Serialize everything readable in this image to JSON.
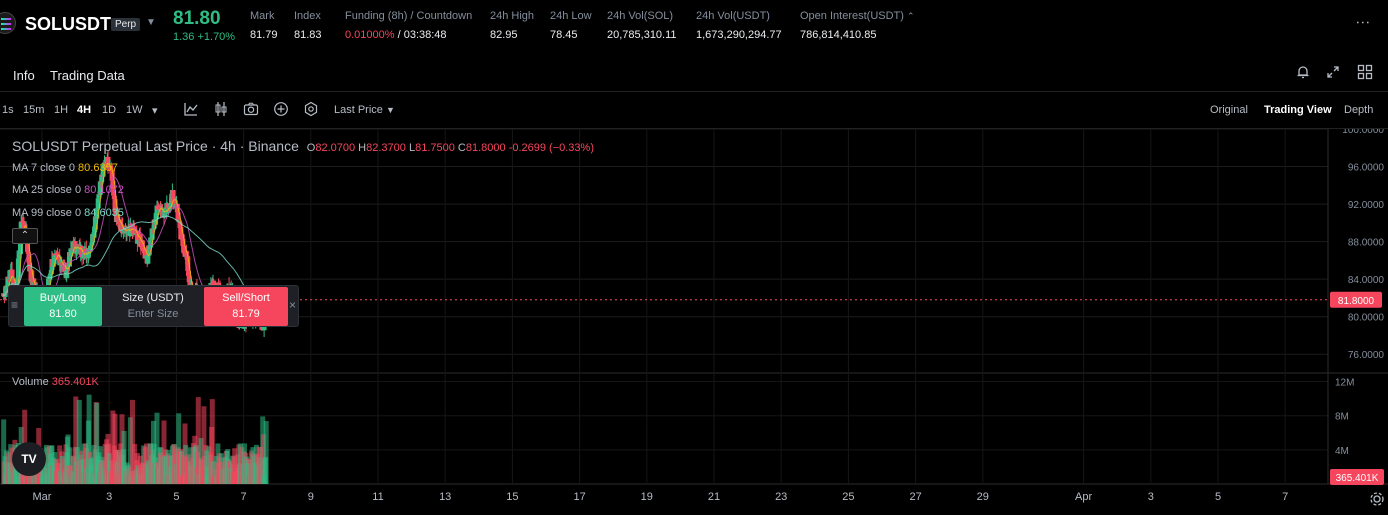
{
  "header": {
    "symbol": "SOLUSDT",
    "contract": "Perp",
    "last_price": "81.80",
    "change": "1.36 +1.70%",
    "stats": [
      {
        "label": "Mark",
        "value": "81.79"
      },
      {
        "label": "Index",
        "value": "81.83"
      },
      {
        "label": "Funding (8h) / Countdown",
        "value_red": "0.01000%",
        "value": " / 03:38:48"
      },
      {
        "label": "24h High",
        "value": "82.95"
      },
      {
        "label": "24h Low",
        "value": "78.45"
      },
      {
        "label": "24h Vol(SOL)",
        "value": "20,785,310.11"
      },
      {
        "label": "24h Vol(USDT)",
        "value": "1,673,290,294.77"
      },
      {
        "label": "Open Interest(USDT)",
        "value": "786,814,410.85"
      }
    ],
    "more": "⋮"
  },
  "tabs": [
    "Info",
    "Trading Data"
  ],
  "toolbar": {
    "intervals": [
      "1s",
      "15m",
      "1H",
      "4H",
      "1D",
      "1W"
    ],
    "active_interval": "4H",
    "price_source": "Last Price",
    "views": [
      "Original",
      "Trading View",
      "Depth"
    ],
    "active_view": "Trading View"
  },
  "legend": {
    "title": "SOLUSDT Perpetual Last Price · 4h · Binance",
    "ohlc": [
      {
        "k": "O",
        "v": "82.0700"
      },
      {
        "k": "H",
        "v": "82.3700"
      },
      {
        "k": "L",
        "v": "81.7500"
      },
      {
        "k": "C",
        "v": "81.8000"
      }
    ],
    "change": "-0.2699 (−0.33%)",
    "ma7_label": "MA 7 close 0",
    "ma7_value": "80.6357",
    "ma25_label": "MA 25 close 0",
    "ma25_value": "80.1072",
    "ma99_label": "MA 99 close 0",
    "ma99_value": "84.6035",
    "volume_label": "Volume",
    "volume_value": "365.401K"
  },
  "trade_panel": {
    "buy_label": "Buy/Long",
    "buy_price": "81.80",
    "size_label": "Size (USDT)",
    "size_placeholder": "Enter Size",
    "sell_label": "Sell/Short",
    "sell_price": "81.79"
  },
  "colors": {
    "up": "#2ebd85",
    "down": "#f6465d",
    "ma7": "#f0b90b",
    "ma25": "#c850c0",
    "ma99": "#76d7c4"
  },
  "chart_data": {
    "type": "candlestick",
    "title": "SOLUSDT Perpetual Last Price · 4h · Binance",
    "y_ticks": [
      "100.0000",
      "96.0000",
      "92.0000",
      "88.0000",
      "84.0000",
      "80.0000",
      "76.0000"
    ],
    "ylim": [
      74,
      100
    ],
    "volume_ticks": [
      "12M",
      "8M",
      "4M"
    ],
    "volume_ylim": [
      0,
      13
    ],
    "current_price": "81.8000",
    "current_volume": "365.401K",
    "x_labels": [
      "Mar",
      "3",
      "5",
      "7",
      "9",
      "11",
      "13",
      "15",
      "17",
      "19",
      "21",
      "23",
      "25",
      "27",
      "29",
      "Apr",
      "3",
      "5",
      "7"
    ],
    "x_label_days": [
      1,
      3,
      5,
      7,
      9,
      11,
      13,
      15,
      17,
      19,
      21,
      23,
      25,
      27,
      29,
      32,
      34,
      36,
      38
    ],
    "anchors": [
      [
        0,
        82.2
      ],
      [
        5,
        83.3
      ],
      [
        12,
        84.8
      ],
      [
        18,
        82.4
      ],
      [
        24,
        87.2
      ],
      [
        27,
        90.6
      ],
      [
        33,
        88.6
      ],
      [
        40,
        84
      ],
      [
        48,
        82.6
      ],
      [
        55,
        80.3
      ],
      [
        62,
        82.3
      ],
      [
        70,
        85.8
      ],
      [
        80,
        86.3
      ],
      [
        90,
        84.8
      ],
      [
        100,
        87.6
      ],
      [
        110,
        87.1
      ],
      [
        120,
        86.7
      ],
      [
        128,
        88.4
      ],
      [
        138,
        93.7
      ],
      [
        146,
        96.6
      ],
      [
        154,
        96.3
      ],
      [
        160,
        91.1
      ],
      [
        168,
        89.2
      ],
      [
        176,
        88.8
      ],
      [
        184,
        89.4
      ],
      [
        192,
        88.4
      ],
      [
        198,
        87.8
      ],
      [
        206,
        86.3
      ],
      [
        214,
        89.2
      ],
      [
        222,
        92
      ],
      [
        230,
        91.2
      ],
      [
        236,
        91.7
      ],
      [
        242,
        93
      ],
      [
        248,
        91.7
      ],
      [
        254,
        88.4
      ],
      [
        262,
        86.4
      ],
      [
        268,
        82.7
      ],
      [
        276,
        82.6
      ],
      [
        284,
        82.3
      ],
      [
        290,
        80.9
      ],
      [
        298,
        83.4
      ],
      [
        304,
        83.1
      ],
      [
        310,
        82.8
      ],
      [
        316,
        81.2
      ],
      [
        322,
        83.4
      ],
      [
        328,
        83
      ],
      [
        334,
        80.1
      ],
      [
        338,
        79.3
      ],
      [
        344,
        79.4
      ],
      [
        352,
        80.4
      ],
      [
        360,
        80.1
      ],
      [
        366,
        79.9
      ],
      [
        372,
        79.1
      ],
      [
        374,
        81.9
      ],
      [
        376,
        81.8
      ]
    ]
  }
}
